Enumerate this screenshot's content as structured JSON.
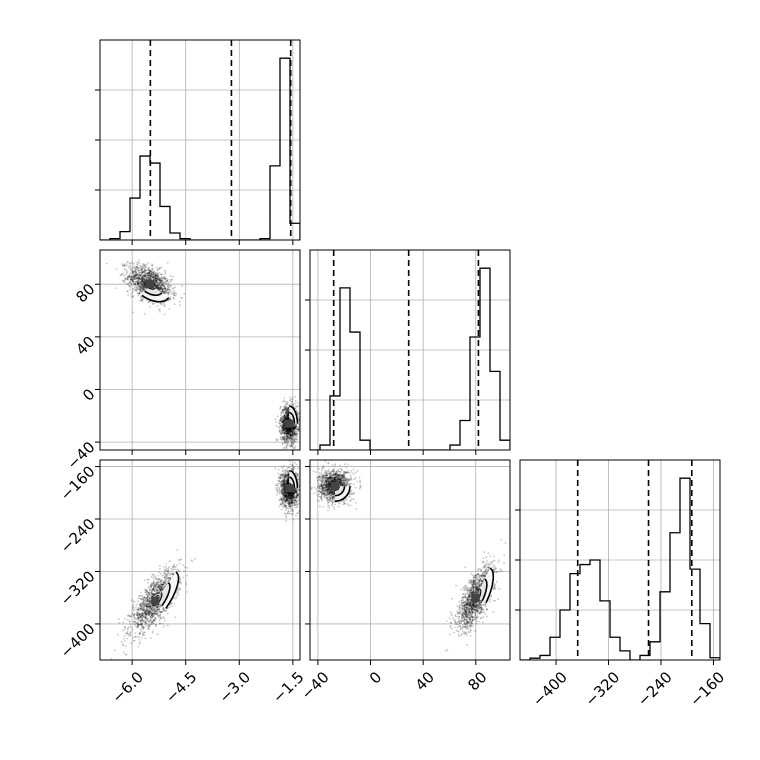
{
  "chart_data": {
    "type": "corner",
    "parameters": [
      {
        "name": "",
        "range": [
          -6.9,
          -1.3
        ],
        "ticks": [
          -6.0,
          -4.5,
          -3.0,
          -1.5
        ],
        "tick_labels": [
          "−6.0",
          "−4.5",
          "−3.0",
          "−1.5"
        ]
      },
      {
        "name": "",
        "range": [
          -46,
          106
        ],
        "ticks": [
          -40,
          0,
          40,
          80
        ],
        "tick_labels": [
          "−40",
          "0",
          "40",
          "80"
        ]
      },
      {
        "name": "",
        "range": [
          -455,
          -150
        ],
        "ticks": [
          -400,
          -320,
          -240,
          -160
        ],
        "tick_labels": [
          "−400",
          "−320",
          "−240",
          "−160"
        ]
      }
    ],
    "hist_quantile_lines": [
      [
        -5.49,
        -3.22,
        -1.56
      ],
      [
        -28.0,
        29.0,
        82.0
      ],
      [
        -367.0,
        -259.0,
        -193.0
      ]
    ],
    "histograms": [
      {
        "bin_edges": [
          -6.9,
          -6.62,
          -6.34,
          -6.06,
          -5.78,
          -5.5,
          -5.22,
          -4.94,
          -4.66,
          -4.38,
          -4.1,
          -3.82,
          -3.54,
          -3.26,
          -2.98,
          -2.7,
          -2.42,
          -2.14,
          -1.86,
          -1.58,
          -1.3
        ],
        "counts": [
          0,
          1,
          6,
          30,
          60,
          55,
          24,
          5,
          1,
          0,
          0,
          0,
          0,
          0,
          0,
          0,
          1,
          53,
          130,
          12
        ]
      },
      {
        "bin_edges": [
          -46,
          -38.4,
          -30.8,
          -23.2,
          -15.6,
          -8,
          -0.4,
          7.2,
          14.8,
          22.4,
          30,
          37.6,
          45.2,
          52.8,
          60.4,
          68,
          75.6,
          83.2,
          90.8,
          98.4,
          106
        ],
        "counts": [
          0,
          1,
          11,
          33,
          24,
          2,
          0,
          0,
          0,
          0,
          0,
          0,
          0,
          0,
          1,
          6,
          23,
          37,
          16,
          2
        ]
      },
      {
        "bin_edges": [
          -455,
          -439.75,
          -424.5,
          -409.25,
          -394,
          -378.75,
          -363.5,
          -348.25,
          -333,
          -317.75,
          -302.5,
          -287.25,
          -272,
          -256.75,
          -241.5,
          -226.25,
          -211,
          -195.75,
          -180.5,
          -165.25,
          -150
        ],
        "counts": [
          0,
          0.4,
          1,
          5,
          11,
          19,
          21,
          22,
          13,
          5,
          2,
          0,
          1,
          4,
          15,
          28,
          40,
          20,
          8,
          0.5
        ]
      }
    ],
    "scatter_clusters": [
      {
        "pair": [
          0,
          1
        ],
        "clusters": [
          {
            "mean": [
              -5.5,
              80
            ],
            "sd": [
              0.3,
              7
            ],
            "rho": -0.45,
            "frac": 0.5
          },
          {
            "mean": [
              -1.6,
              -26
            ],
            "sd": [
              0.12,
              7
            ],
            "rho": 0.0,
            "frac": 0.5
          }
        ]
      },
      {
        "pair": [
          0,
          2
        ],
        "clusters": [
          {
            "mean": [
              -5.35,
              -365
            ],
            "sd": [
              0.34,
              24
            ],
            "rho": 0.75,
            "frac": 0.5
          },
          {
            "mean": [
              -1.6,
              -193
            ],
            "sd": [
              0.12,
              14
            ],
            "rho": 0.0,
            "frac": 0.5
          }
        ]
      },
      {
        "pair": [
          1,
          2
        ],
        "clusters": [
          {
            "mean": [
              -27,
              -190
            ],
            "sd": [
              6,
              12
            ],
            "rho": 0.0,
            "frac": 0.5
          },
          {
            "mean": [
              80,
              -360
            ],
            "sd": [
              7,
              24
            ],
            "rho": 0.7,
            "frac": 0.5
          }
        ]
      }
    ],
    "grid": true,
    "colors": {
      "line": "#000000",
      "grid": "#b0b0b0",
      "points": "#000000"
    }
  }
}
